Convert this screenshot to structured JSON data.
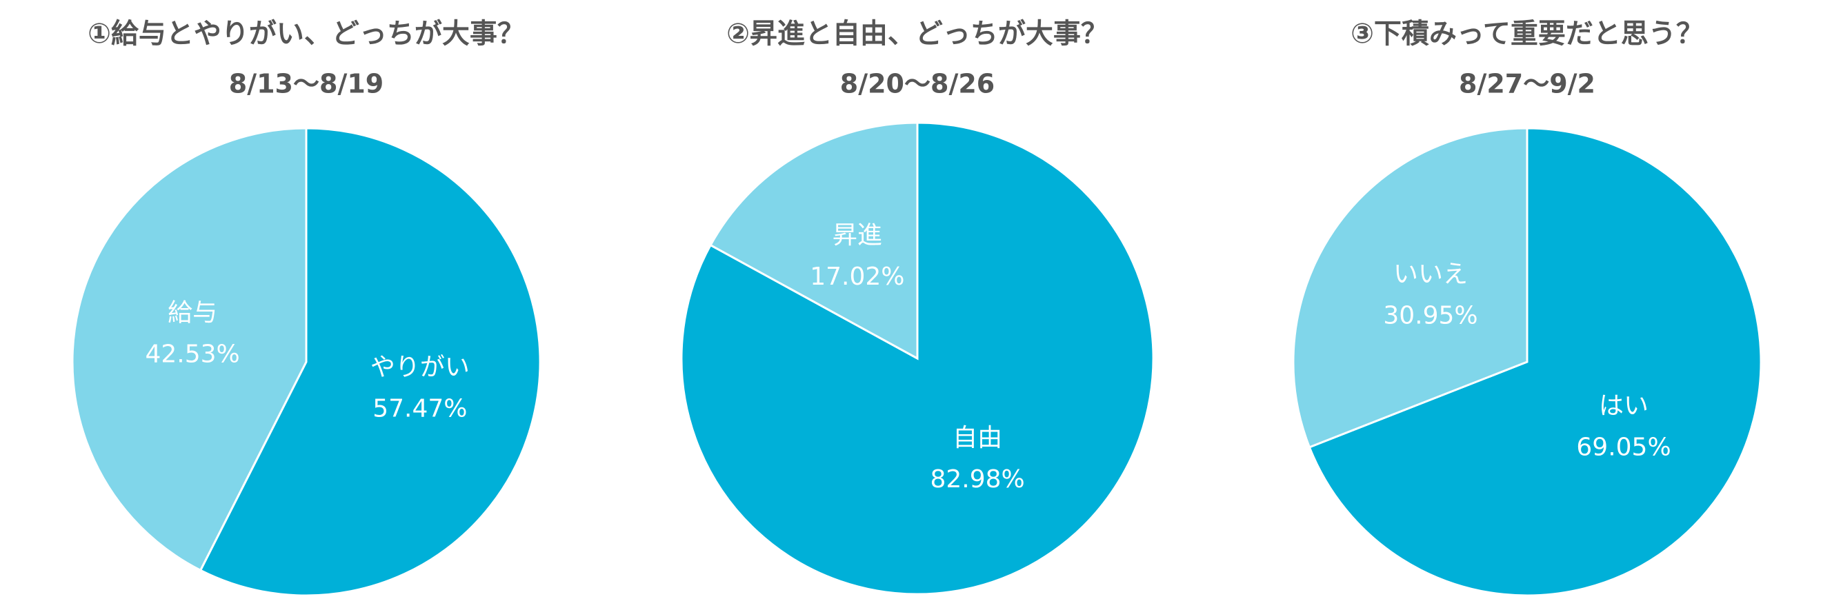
{
  "chart_data": [
    {
      "type": "pie",
      "title": "①給与とやりがい、どっちが大事？",
      "subtitle": "8/13〜8/19",
      "categories": [
        "やりがい",
        "給与"
      ],
      "values": [
        57.47,
        42.53
      ],
      "value_labels": [
        "57.47%",
        "42.53%"
      ],
      "colors": [
        "#00b0d8",
        "#80d6ea"
      ]
    },
    {
      "type": "pie",
      "title": "②昇進と自由、どっちが大事？",
      "subtitle": "8/20〜8/26",
      "categories": [
        "自由",
        "昇進"
      ],
      "values": [
        82.98,
        17.02
      ],
      "value_labels": [
        "82.98%",
        "17.02%"
      ],
      "colors": [
        "#00b0d8",
        "#80d6ea"
      ]
    },
    {
      "type": "pie",
      "title": "③下積みって重要だと思う？",
      "subtitle": "8/27〜9/2",
      "categories": [
        "はい",
        "いいえ"
      ],
      "values": [
        69.05,
        30.95
      ],
      "value_labels": [
        "69.05%",
        "30.95%"
      ],
      "colors": [
        "#00b0d8",
        "#80d6ea"
      ]
    }
  ]
}
